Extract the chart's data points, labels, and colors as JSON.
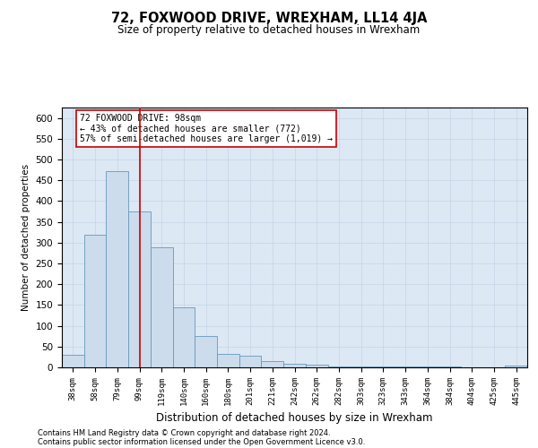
{
  "title": "72, FOXWOOD DRIVE, WREXHAM, LL14 4JA",
  "subtitle": "Size of property relative to detached houses in Wrexham",
  "xlabel": "Distribution of detached houses by size in Wrexham",
  "ylabel": "Number of detached properties",
  "categories": [
    "38sqm",
    "58sqm",
    "79sqm",
    "99sqm",
    "119sqm",
    "140sqm",
    "160sqm",
    "180sqm",
    "201sqm",
    "221sqm",
    "242sqm",
    "262sqm",
    "282sqm",
    "303sqm",
    "323sqm",
    "343sqm",
    "364sqm",
    "384sqm",
    "404sqm",
    "425sqm",
    "445sqm"
  ],
  "values": [
    30,
    320,
    472,
    375,
    288,
    144,
    76,
    33,
    29,
    15,
    8,
    6,
    3,
    3,
    3,
    3,
    3,
    3,
    0,
    0,
    5
  ],
  "bar_color": "#ccdcec",
  "bar_edge_color": "#6699bb",
  "vline_x": 3.0,
  "vline_color": "#cc0000",
  "annotation_text": "72 FOXWOOD DRIVE: 98sqm\n← 43% of detached houses are smaller (772)\n57% of semi-detached houses are larger (1,019) →",
  "annotation_box_color": "#ffffff",
  "annotation_box_edge": "#cc0000",
  "ylim": [
    0,
    625
  ],
  "yticks": [
    0,
    50,
    100,
    150,
    200,
    250,
    300,
    350,
    400,
    450,
    500,
    550,
    600
  ],
  "grid_color": "#c5d5e5",
  "plot_bg_color": "#dce8f4",
  "footnote1": "Contains HM Land Registry data © Crown copyright and database right 2024.",
  "footnote2": "Contains public sector information licensed under the Open Government Licence v3.0."
}
